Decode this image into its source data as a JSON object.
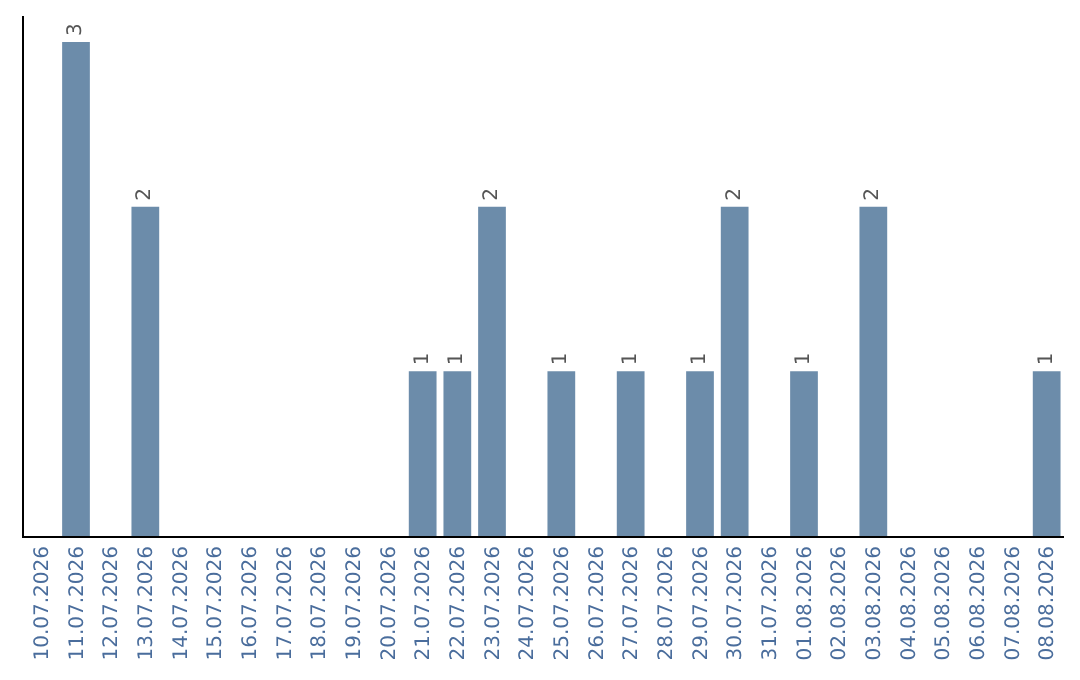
{
  "chart_data": {
    "type": "bar",
    "categories": [
      "10.07.2026",
      "11.07.2026",
      "12.07.2026",
      "13.07.2026",
      "14.07.2026",
      "15.07.2026",
      "16.07.2026",
      "17.07.2026",
      "18.07.2026",
      "19.07.2026",
      "20.07.2026",
      "21.07.2026",
      "22.07.2026",
      "23.07.2026",
      "24.07.2026",
      "25.07.2026",
      "26.07.2026",
      "27.07.2026",
      "28.07.2026",
      "29.07.2026",
      "30.07.2026",
      "31.07.2026",
      "01.08.2026",
      "02.08.2026",
      "03.08.2026",
      "04.08.2026",
      "05.08.2026",
      "06.08.2026",
      "07.08.2026",
      "08.08.2026"
    ],
    "values": [
      0,
      3,
      0,
      2,
      0,
      0,
      0,
      0,
      0,
      0,
      0,
      1,
      1,
      2,
      0,
      1,
      0,
      1,
      0,
      1,
      2,
      0,
      1,
      0,
      2,
      0,
      0,
      0,
      0,
      1
    ],
    "value_labels": [
      null,
      "3",
      null,
      "2",
      null,
      null,
      null,
      null,
      null,
      null,
      null,
      "1",
      "1",
      "2",
      null,
      "1",
      null,
      "1",
      null,
      "1",
      "2",
      null,
      "1",
      null,
      "2",
      null,
      null,
      null,
      null,
      "1"
    ],
    "color": "#6c8caa",
    "tick_labels": "x",
    "grid": false,
    "legend": false
  }
}
